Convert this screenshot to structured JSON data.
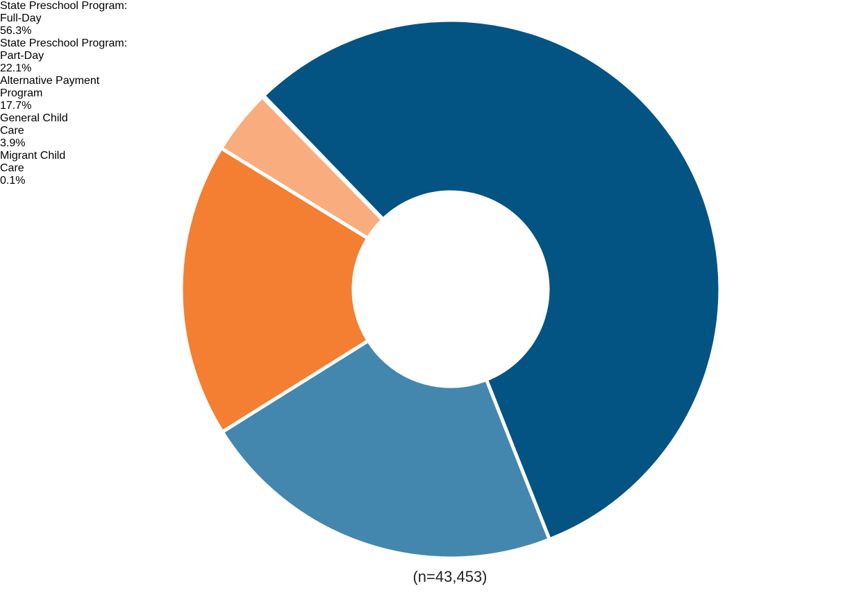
{
  "chart_data": {
    "type": "donut",
    "categories": [
      "State Preschool Program: Full-Day",
      "State Preschool Program: Part-Day",
      "Alternative Payment Program",
      "General Child Care",
      "Migrant Child Care"
    ],
    "values": [
      56.3,
      22.1,
      17.7,
      3.9,
      0.1
    ],
    "value_labels": [
      "56.3%",
      "22.1%",
      "17.7%",
      "3.9%",
      "0.1%"
    ],
    "colors": [
      "#045483",
      "#4387ae",
      "#f47f32",
      "#f9ad7e",
      "#fbc9a3"
    ],
    "annotation": "(n=43,453)"
  }
}
